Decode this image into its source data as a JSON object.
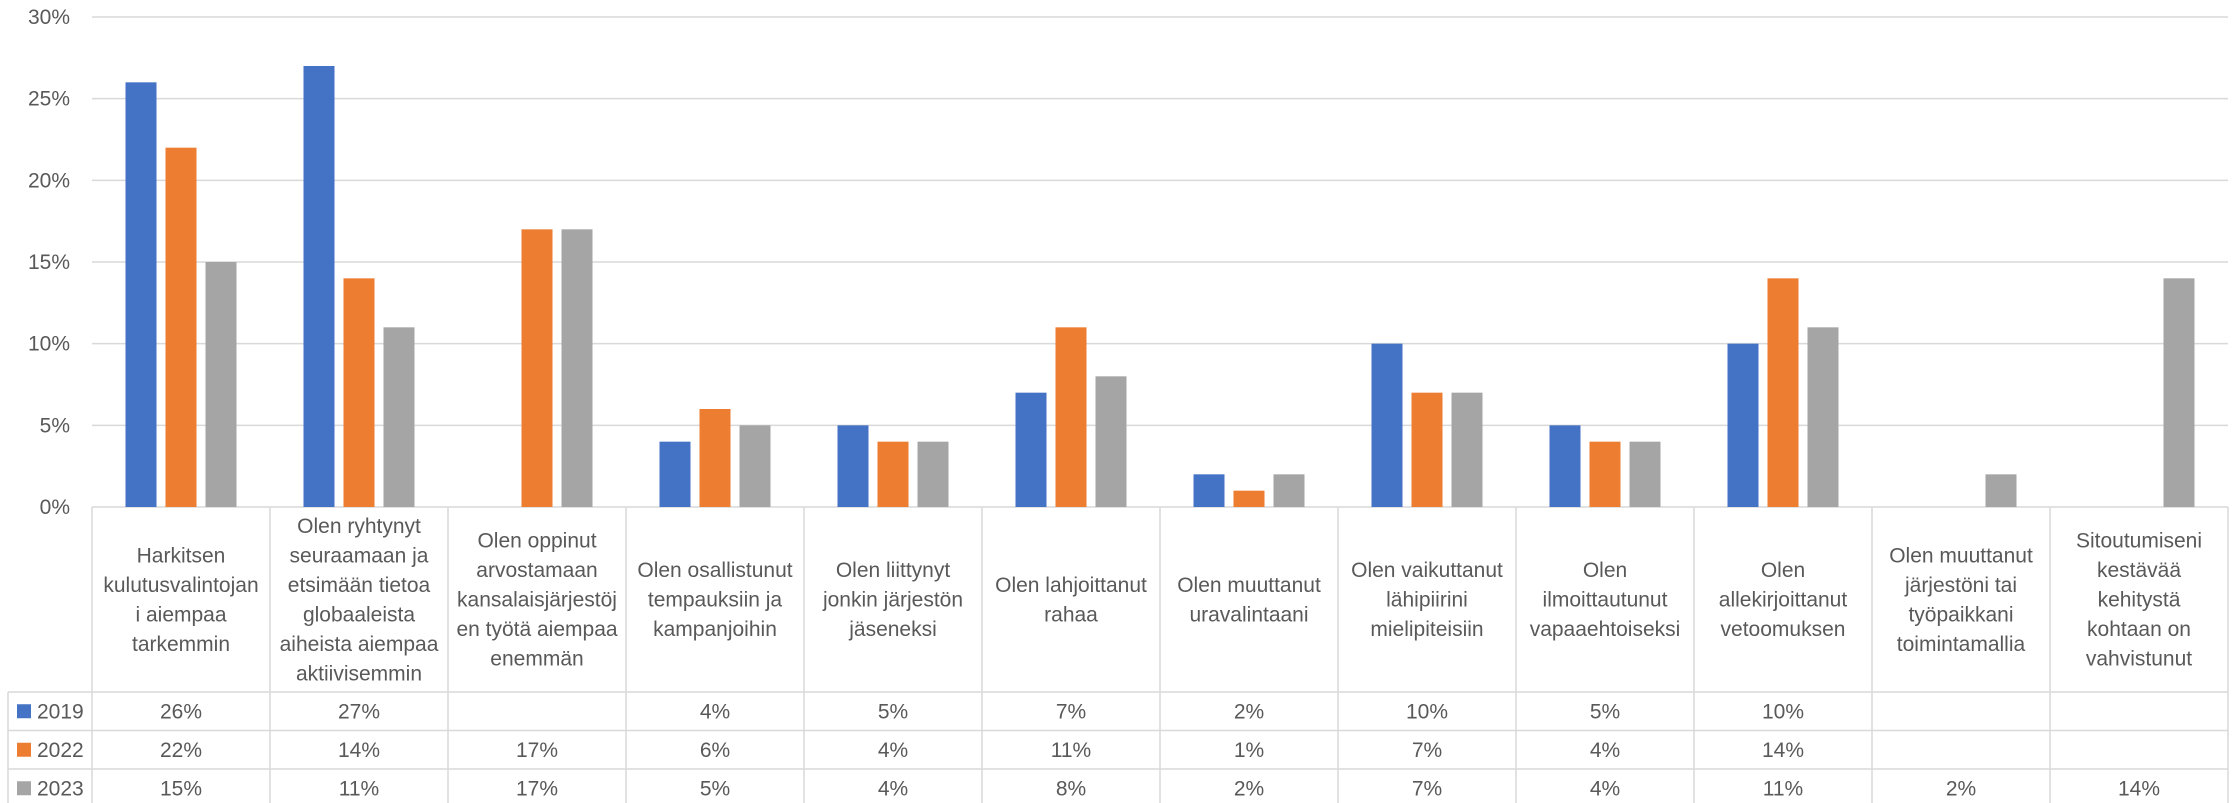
{
  "chart_data": {
    "type": "bar",
    "title": "",
    "xlabel": "",
    "ylabel": "",
    "ylim": [
      0,
      30
    ],
    "yticks": [
      "0%",
      "5%",
      "10%",
      "15%",
      "20%",
      "25%",
      "30%"
    ],
    "grid": true,
    "legend_placement": "data-table",
    "categories": [
      "Harkitsen kulutusvalintojan i aiempaa tarkemmin",
      "Olen ryhtynyt seuraamaan ja etsimään tietoa globaaleista aiheista aiempaa aktiivisemmin",
      "Olen oppinut arvostamaan kansalaisjärjestöj en työtä aiempaa enemmän",
      "Olen osallistunut tempauksiin ja kampanjoihin",
      "Olen liittynyt jonkin järjestön jäseneksi",
      "Olen lahjoittanut rahaa",
      "Olen muuttanut uravalintaani",
      "Olen vaikuttanut lähipiirini mielipiteisiin",
      "Olen ilmoittautunut vapaaehtoiseksi",
      "Olen allekirjoittanut vetoomuksen",
      "Olen muuttanut järjestöni tai työpaikkani toimintamallia",
      "Sitoutumiseni kestävää kehitystä kohtaan on vahvistunut"
    ],
    "category_lines": [
      [
        "Harkitsen",
        "kulutusvalintojan",
        "i aiempaa",
        "tarkemmin"
      ],
      [
        "Olen ryhtynyt",
        "seuraamaan ja",
        "etsimään tietoa",
        "globaaleista",
        "aiheista aiempaa",
        "aktiivisemmin"
      ],
      [
        "Olen oppinut",
        "arvostamaan",
        "kansalaisjärjestöj",
        "en työtä aiempaa",
        "enemmän"
      ],
      [
        "Olen osallistunut",
        "tempauksiin ja",
        "kampanjoihin"
      ],
      [
        "Olen liittynyt",
        "jonkin järjestön",
        "jäseneksi"
      ],
      [
        "Olen lahjoittanut",
        "rahaa"
      ],
      [
        "Olen muuttanut",
        "uravalintaani"
      ],
      [
        "Olen vaikuttanut",
        "lähipiirini",
        "mielipiteisiin"
      ],
      [
        "Olen",
        "ilmoittautunut",
        "vapaaehtoiseksi"
      ],
      [
        "Olen",
        "allekirjoittanut",
        "vetoomuksen"
      ],
      [
        "Olen muuttanut",
        "järjestöni tai",
        "työpaikkani",
        "toimintamallia"
      ],
      [
        "Sitoutumiseni",
        "kestävää",
        "kehitystä",
        "kohtaan on",
        "vahvistunut"
      ]
    ],
    "series": [
      {
        "name": "2019",
        "color": "#4472C4",
        "values": [
          26,
          27,
          null,
          4,
          5,
          7,
          2,
          10,
          5,
          10,
          null,
          null
        ],
        "labels": [
          "26%",
          "27%",
          "",
          "4%",
          "5%",
          "7%",
          "2%",
          "10%",
          "5%",
          "10%",
          "",
          ""
        ]
      },
      {
        "name": "2022",
        "color": "#ED7D31",
        "values": [
          22,
          14,
          17,
          6,
          4,
          11,
          1,
          7,
          4,
          14,
          null,
          null
        ],
        "labels": [
          "22%",
          "14%",
          "17%",
          "6%",
          "4%",
          "11%",
          "1%",
          "7%",
          "4%",
          "14%",
          "",
          ""
        ]
      },
      {
        "name": "2023",
        "color": "#A5A5A5",
        "values": [
          15,
          11,
          17,
          5,
          4,
          8,
          2,
          7,
          4,
          11,
          2,
          14
        ],
        "labels": [
          "15%",
          "11%",
          "17%",
          "5%",
          "4%",
          "8%",
          "2%",
          "7%",
          "4%",
          "11%",
          "2%",
          "14%"
        ]
      }
    ]
  }
}
